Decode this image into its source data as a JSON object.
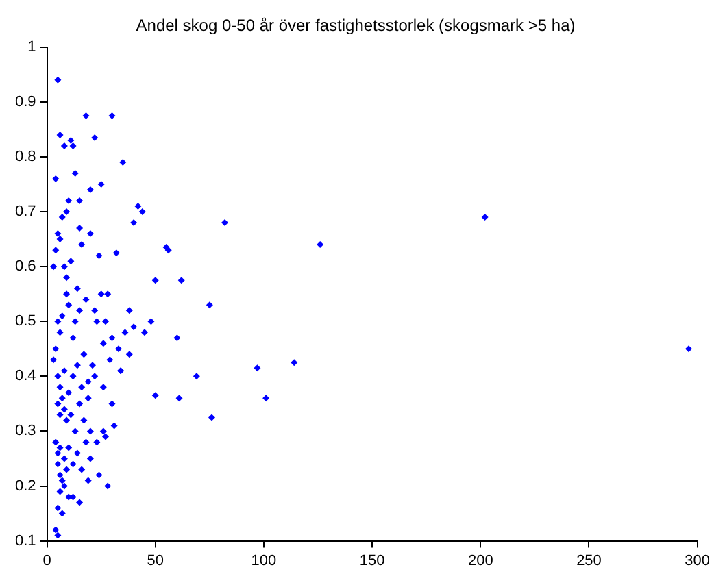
{
  "chart_data": {
    "type": "scatter",
    "title": "Andel skog 0-50 år över fastighetsstorlek (skogsmark >5 ha)",
    "marker": "diamond",
    "xlim": [
      0,
      300
    ],
    "ylim": [
      0.1,
      1
    ],
    "xticks": [
      0,
      50,
      100,
      150,
      200,
      250,
      300
    ],
    "yticks": [
      0.1,
      0.2,
      0.3,
      0.4,
      0.5,
      0.6,
      0.7,
      0.8,
      0.9,
      1
    ],
    "grid": false,
    "legend": false,
    "series": [
      {
        "color": "#0000ff",
        "x": [
          202,
          126,
          82,
          296,
          114,
          101,
          97,
          76,
          75,
          69,
          62,
          60,
          61,
          55,
          56,
          50,
          50,
          48,
          45,
          42,
          44,
          40,
          38,
          35,
          32,
          30,
          28,
          25,
          22,
          24,
          18,
          20,
          15,
          15,
          12,
          11,
          5,
          6,
          4,
          8,
          9,
          10,
          13,
          7,
          5,
          6,
          4,
          3,
          8,
          9,
          11,
          14,
          16,
          18,
          20,
          22,
          25,
          27,
          30,
          33,
          36,
          40,
          38,
          34,
          29,
          26,
          23,
          21,
          19,
          17,
          15,
          13,
          12,
          10,
          9,
          7,
          6,
          5,
          4,
          3,
          5,
          6,
          8,
          10,
          12,
          14,
          16,
          19,
          22,
          26,
          30,
          34,
          5,
          6,
          7,
          8,
          9,
          11,
          13,
          15,
          17,
          20,
          23,
          27,
          31,
          4,
          5,
          6,
          8,
          10,
          12,
          14,
          16,
          19,
          24,
          28,
          5,
          6,
          8,
          10,
          15,
          20,
          5,
          7,
          12,
          4,
          5,
          6,
          7,
          9,
          18,
          26
        ],
        "values": [
          0.69,
          0.64,
          0.68,
          0.45,
          0.425,
          0.36,
          0.415,
          0.325,
          0.53,
          0.4,
          0.575,
          0.47,
          0.36,
          0.635,
          0.63,
          0.365,
          0.575,
          0.5,
          0.48,
          0.71,
          0.7,
          0.68,
          0.52,
          0.79,
          0.625,
          0.875,
          0.55,
          0.75,
          0.835,
          0.62,
          0.875,
          0.74,
          0.67,
          0.72,
          0.82,
          0.83,
          0.94,
          0.84,
          0.76,
          0.82,
          0.7,
          0.72,
          0.77,
          0.69,
          0.66,
          0.65,
          0.63,
          0.6,
          0.6,
          0.58,
          0.61,
          0.56,
          0.64,
          0.54,
          0.66,
          0.52,
          0.55,
          0.5,
          0.47,
          0.45,
          0.48,
          0.49,
          0.44,
          0.41,
          0.43,
          0.46,
          0.5,
          0.42,
          0.39,
          0.44,
          0.52,
          0.5,
          0.47,
          0.53,
          0.55,
          0.51,
          0.48,
          0.5,
          0.45,
          0.43,
          0.4,
          0.38,
          0.41,
          0.37,
          0.4,
          0.42,
          0.38,
          0.36,
          0.4,
          0.38,
          0.35,
          0.41,
          0.35,
          0.33,
          0.36,
          0.34,
          0.32,
          0.33,
          0.3,
          0.35,
          0.32,
          0.3,
          0.28,
          0.29,
          0.31,
          0.28,
          0.26,
          0.27,
          0.25,
          0.27,
          0.24,
          0.26,
          0.23,
          0.21,
          0.22,
          0.2,
          0.24,
          0.22,
          0.2,
          0.18,
          0.17,
          0.25,
          0.16,
          0.15,
          0.18,
          0.12,
          0.11,
          0.19,
          0.21,
          0.23,
          0.28,
          0.3
        ]
      }
    ]
  }
}
